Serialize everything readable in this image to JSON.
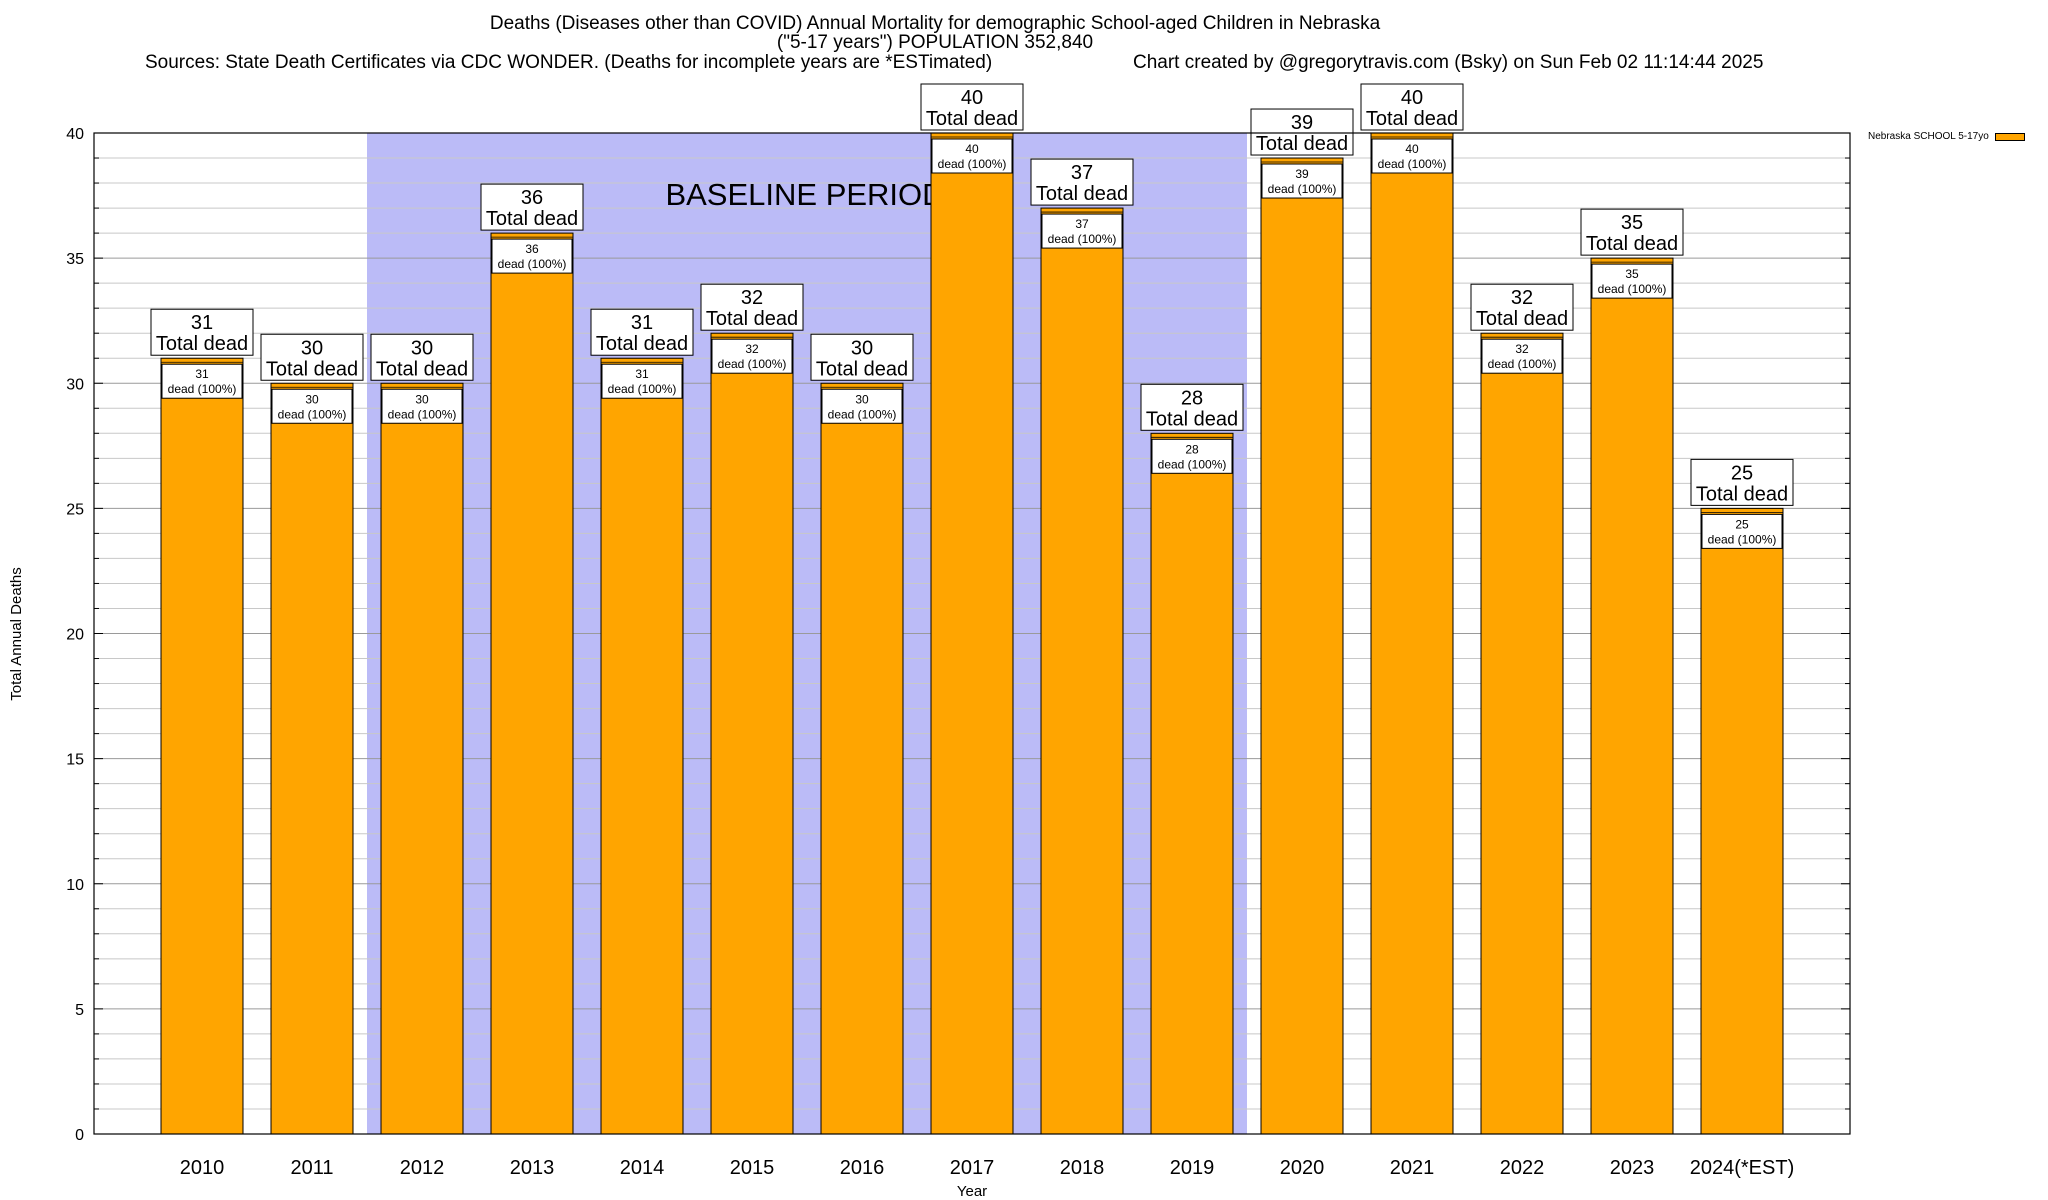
{
  "chart_data": {
    "type": "bar",
    "title": "Deaths (Diseases other than COVID) Annual Mortality for demographic School-aged Children in Nebraska",
    "subtitle": "(\"5-17 years\") POPULATION 352,840",
    "sources": "Sources: State Death Certificates via CDC WONDER. (Deaths for incomplete years are *ESTimated)",
    "credit": "Chart created by @gregorytravis.com (Bsky) on Sun Feb 02 11:14:44 2025",
    "xlabel": "Year",
    "ylabel": "Total Annual Deaths",
    "ylim": [
      0,
      40
    ],
    "yticks": [
      0,
      5,
      10,
      15,
      20,
      25,
      30,
      35,
      40
    ],
    "categories": [
      "2010",
      "2011",
      "2012",
      "2013",
      "2014",
      "2015",
      "2016",
      "2017",
      "2018",
      "2019",
      "2020",
      "2021",
      "2022",
      "2023",
      "2024(*EST)"
    ],
    "series": [
      {
        "name": "Nebraska SCHOOL 5-17yo",
        "color": "#ffa500",
        "values": [
          31,
          30,
          30,
          36,
          31,
          32,
          30,
          40,
          37,
          28,
          39,
          40,
          32,
          35,
          25
        ]
      }
    ],
    "total_label_suffix": "Total dead",
    "inner_label_suffix": "dead (100%)",
    "baseline_band": {
      "label": "BASELINE PERIOD",
      "from": "2012",
      "to": "2019",
      "color": "#bbbbf7"
    },
    "grid": true,
    "legend_position": "top-right"
  }
}
